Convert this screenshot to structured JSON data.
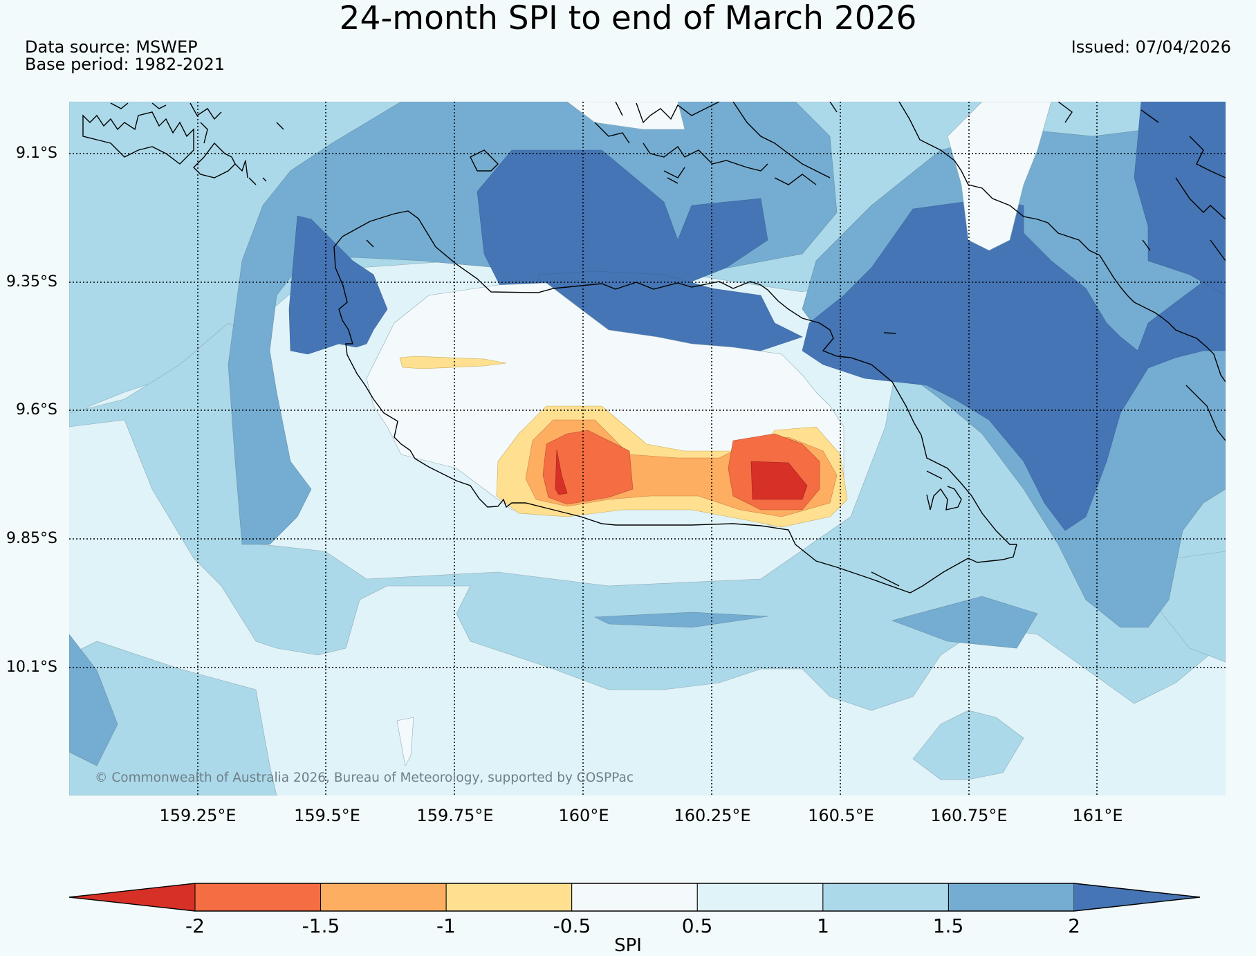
{
  "title": "24-month SPI to end of March 2026",
  "data_source": "Data source: MSWEP",
  "base_period": "Base period: 1982-2021",
  "issued": "Issued: 07/04/2026",
  "copyright": "© Commonwealth of Australia 2026, Bureau of Meteorology, supported by COSPPac",
  "map": {
    "lat_labels": [
      "9.1°S",
      "9.35°S",
      "9.6°S",
      "9.85°S",
      "10.1°S"
    ],
    "lon_labels": [
      "159.25°E",
      "159.5°E",
      "159.75°E",
      "160°E",
      "160.25°E",
      "160.5°E",
      "160.75°E",
      "161°E"
    ],
    "colors": {
      "lt_-2": "#d73027",
      "-2_-1.5": "#f46d43",
      "-1.5_-1": "#fdae61",
      "-1_-0.5": "#fee090",
      "-0.5_0.5": "#f4fafc",
      "0.5_1": "#e0f3f8",
      "1_1.5": "#abd9e9",
      "1.5_2": "#74add1",
      "gt_2": "#4575b4"
    }
  },
  "colorbar": {
    "label": "SPI",
    "ticks": [
      "-2",
      "-1.5",
      "-1",
      "-0.5",
      "0.5",
      "1",
      "1.5",
      "2"
    ],
    "colors": [
      "#d73027",
      "#f46d43",
      "#fdae61",
      "#fee090",
      "#f4fafc",
      "#e0f3f8",
      "#abd9e9",
      "#74add1",
      "#4575b4"
    ]
  }
}
